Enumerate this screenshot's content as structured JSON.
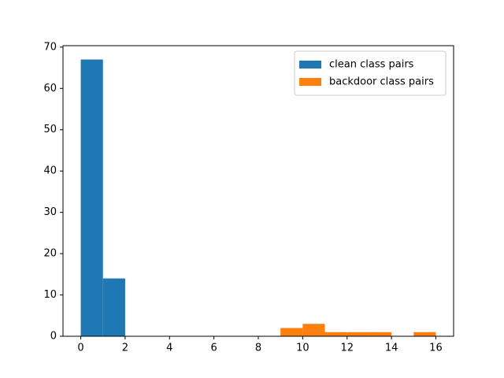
{
  "chart_data": {
    "type": "histogram",
    "series": [
      {
        "name": "clean class pairs",
        "color": "#1f77b4",
        "bins": [
          0,
          1,
          2
        ],
        "values": [
          67,
          14
        ]
      },
      {
        "name": "backdoor class pairs",
        "color": "#ff7f0e",
        "bins": [
          9,
          10,
          11,
          12,
          13,
          14,
          15,
          16
        ],
        "values": [
          2,
          3,
          1,
          1,
          1,
          0,
          1
        ]
      }
    ],
    "xlim": [
      -0.8,
      16.8
    ],
    "xticks": [
      0,
      2,
      4,
      6,
      8,
      10,
      12,
      14,
      16
    ],
    "ylim": [
      0,
      70.35
    ],
    "yticks": [
      0,
      10,
      20,
      30,
      40,
      50,
      60,
      70
    ],
    "legend": "upper right"
  }
}
